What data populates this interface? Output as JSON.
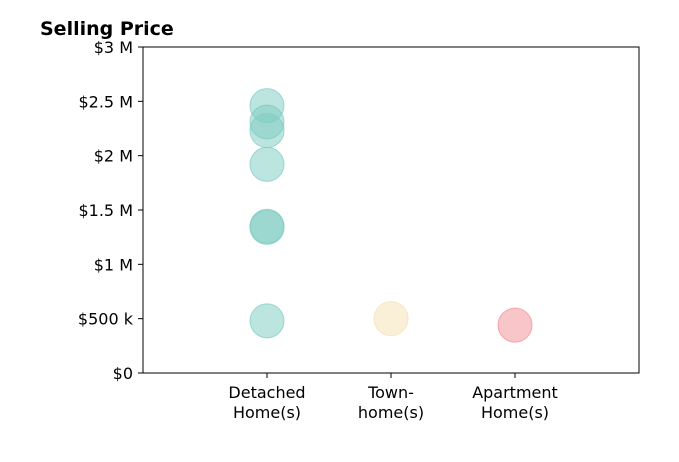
{
  "chart_data": {
    "type": "scatter",
    "title": "Selling Price",
    "xlabel": "",
    "ylabel": "",
    "categories": [
      [
        "Detached",
        "Home(s)"
      ],
      [
        "Town-",
        "home(s)"
      ],
      [
        "Apartment",
        "Home(s)"
      ]
    ],
    "ylim": [
      0,
      3000000
    ],
    "yticks": [
      {
        "value": 0,
        "label": "$0"
      },
      {
        "value": 500000,
        "label": "$500 k"
      },
      {
        "value": 1000000,
        "label": "$1 M"
      },
      {
        "value": 1500000,
        "label": "$1.5 M"
      },
      {
        "value": 2000000,
        "label": "$2 M"
      },
      {
        "value": 2500000,
        "label": "$2.5 M"
      },
      {
        "value": 3000000,
        "label": "$3 M"
      }
    ],
    "grid": false,
    "series": [
      {
        "category_index": 0,
        "color": "#7ccbbf",
        "values": [
          2460000,
          2310000,
          2230000,
          1920000,
          1350000,
          1340000,
          480000
        ]
      },
      {
        "category_index": 1,
        "color": "#f5dfb0",
        "values": [
          500000
        ]
      },
      {
        "category_index": 2,
        "color": "#f28b93",
        "values": [
          440000
        ]
      }
    ]
  }
}
